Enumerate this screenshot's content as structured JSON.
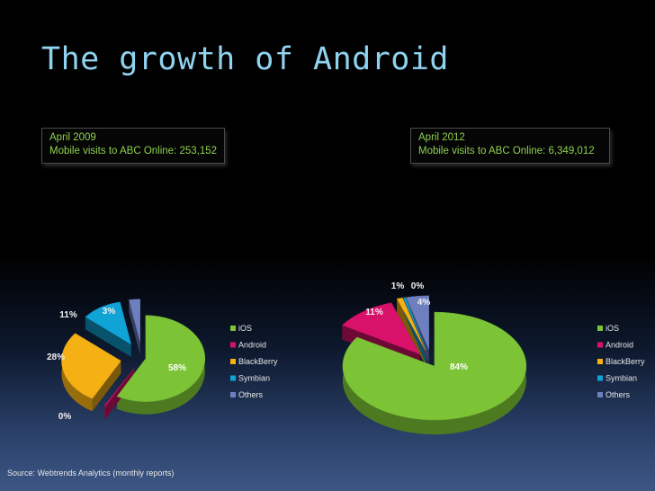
{
  "title": "The growth of Android",
  "captions": {
    "left": {
      "line1": "April 2009",
      "line2": "Mobile visits to ABC Online: 253,152"
    },
    "right": {
      "line1": "April 2012",
      "line2": "Mobile visits to ABC Online: 6,349,012"
    }
  },
  "source": "Source: Webtrends Analytics (monthly reports)",
  "colors": {
    "iOS": "#7cc436",
    "Android": "#d8126a",
    "BlackBerry": "#f5b114",
    "Symbian": "#10a3d6",
    "Others": "#6d7fbf"
  },
  "chart_data": [
    {
      "type": "pie",
      "style": "3d-exploded",
      "categories": [
        "iOS",
        "Android",
        "BlackBerry",
        "Symbian",
        "Others"
      ],
      "values": [
        58,
        0,
        28,
        11,
        3
      ],
      "value_labels": [
        "58%",
        "0%",
        "28%",
        "11%",
        "3%"
      ],
      "legend": [
        "iOS",
        "Android",
        "BlackBerry",
        "Symbian",
        "Others"
      ],
      "legend_position": "right"
    },
    {
      "type": "pie",
      "style": "3d-exploded",
      "categories": [
        "iOS",
        "Android",
        "BlackBerry",
        "Symbian",
        "Others"
      ],
      "values": [
        84,
        11,
        1,
        0,
        4
      ],
      "value_labels": [
        "84%",
        "11%",
        "1%",
        "0%",
        "4%"
      ],
      "legend": [
        "iOS",
        "Android",
        "BlackBerry",
        "Symbian",
        "Others"
      ],
      "legend_position": "right"
    }
  ]
}
